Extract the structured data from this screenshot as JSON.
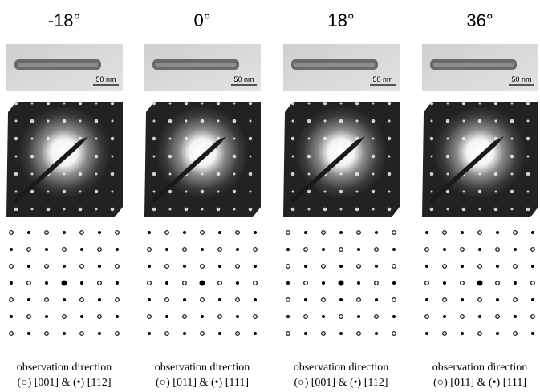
{
  "columns": [
    {
      "angle": "-18°",
      "scale_bar": "50 nm",
      "caption_line1": "observation direction",
      "caption_line2": "(○) [001] & (•) [112]"
    },
    {
      "angle": "0°",
      "scale_bar": "50 nm",
      "caption_line1": "observation direction",
      "caption_line2": "(○) [011] & (•) [111]"
    },
    {
      "angle": "18°",
      "scale_bar": "50 nm",
      "caption_line1": "observation direction",
      "caption_line2": "(○) [001] & (•) [112]"
    },
    {
      "angle": "36°",
      "scale_bar": "50 nm",
      "caption_line1": "observation direction",
      "caption_line2": "(○) [011] & (•) [111]"
    }
  ]
}
